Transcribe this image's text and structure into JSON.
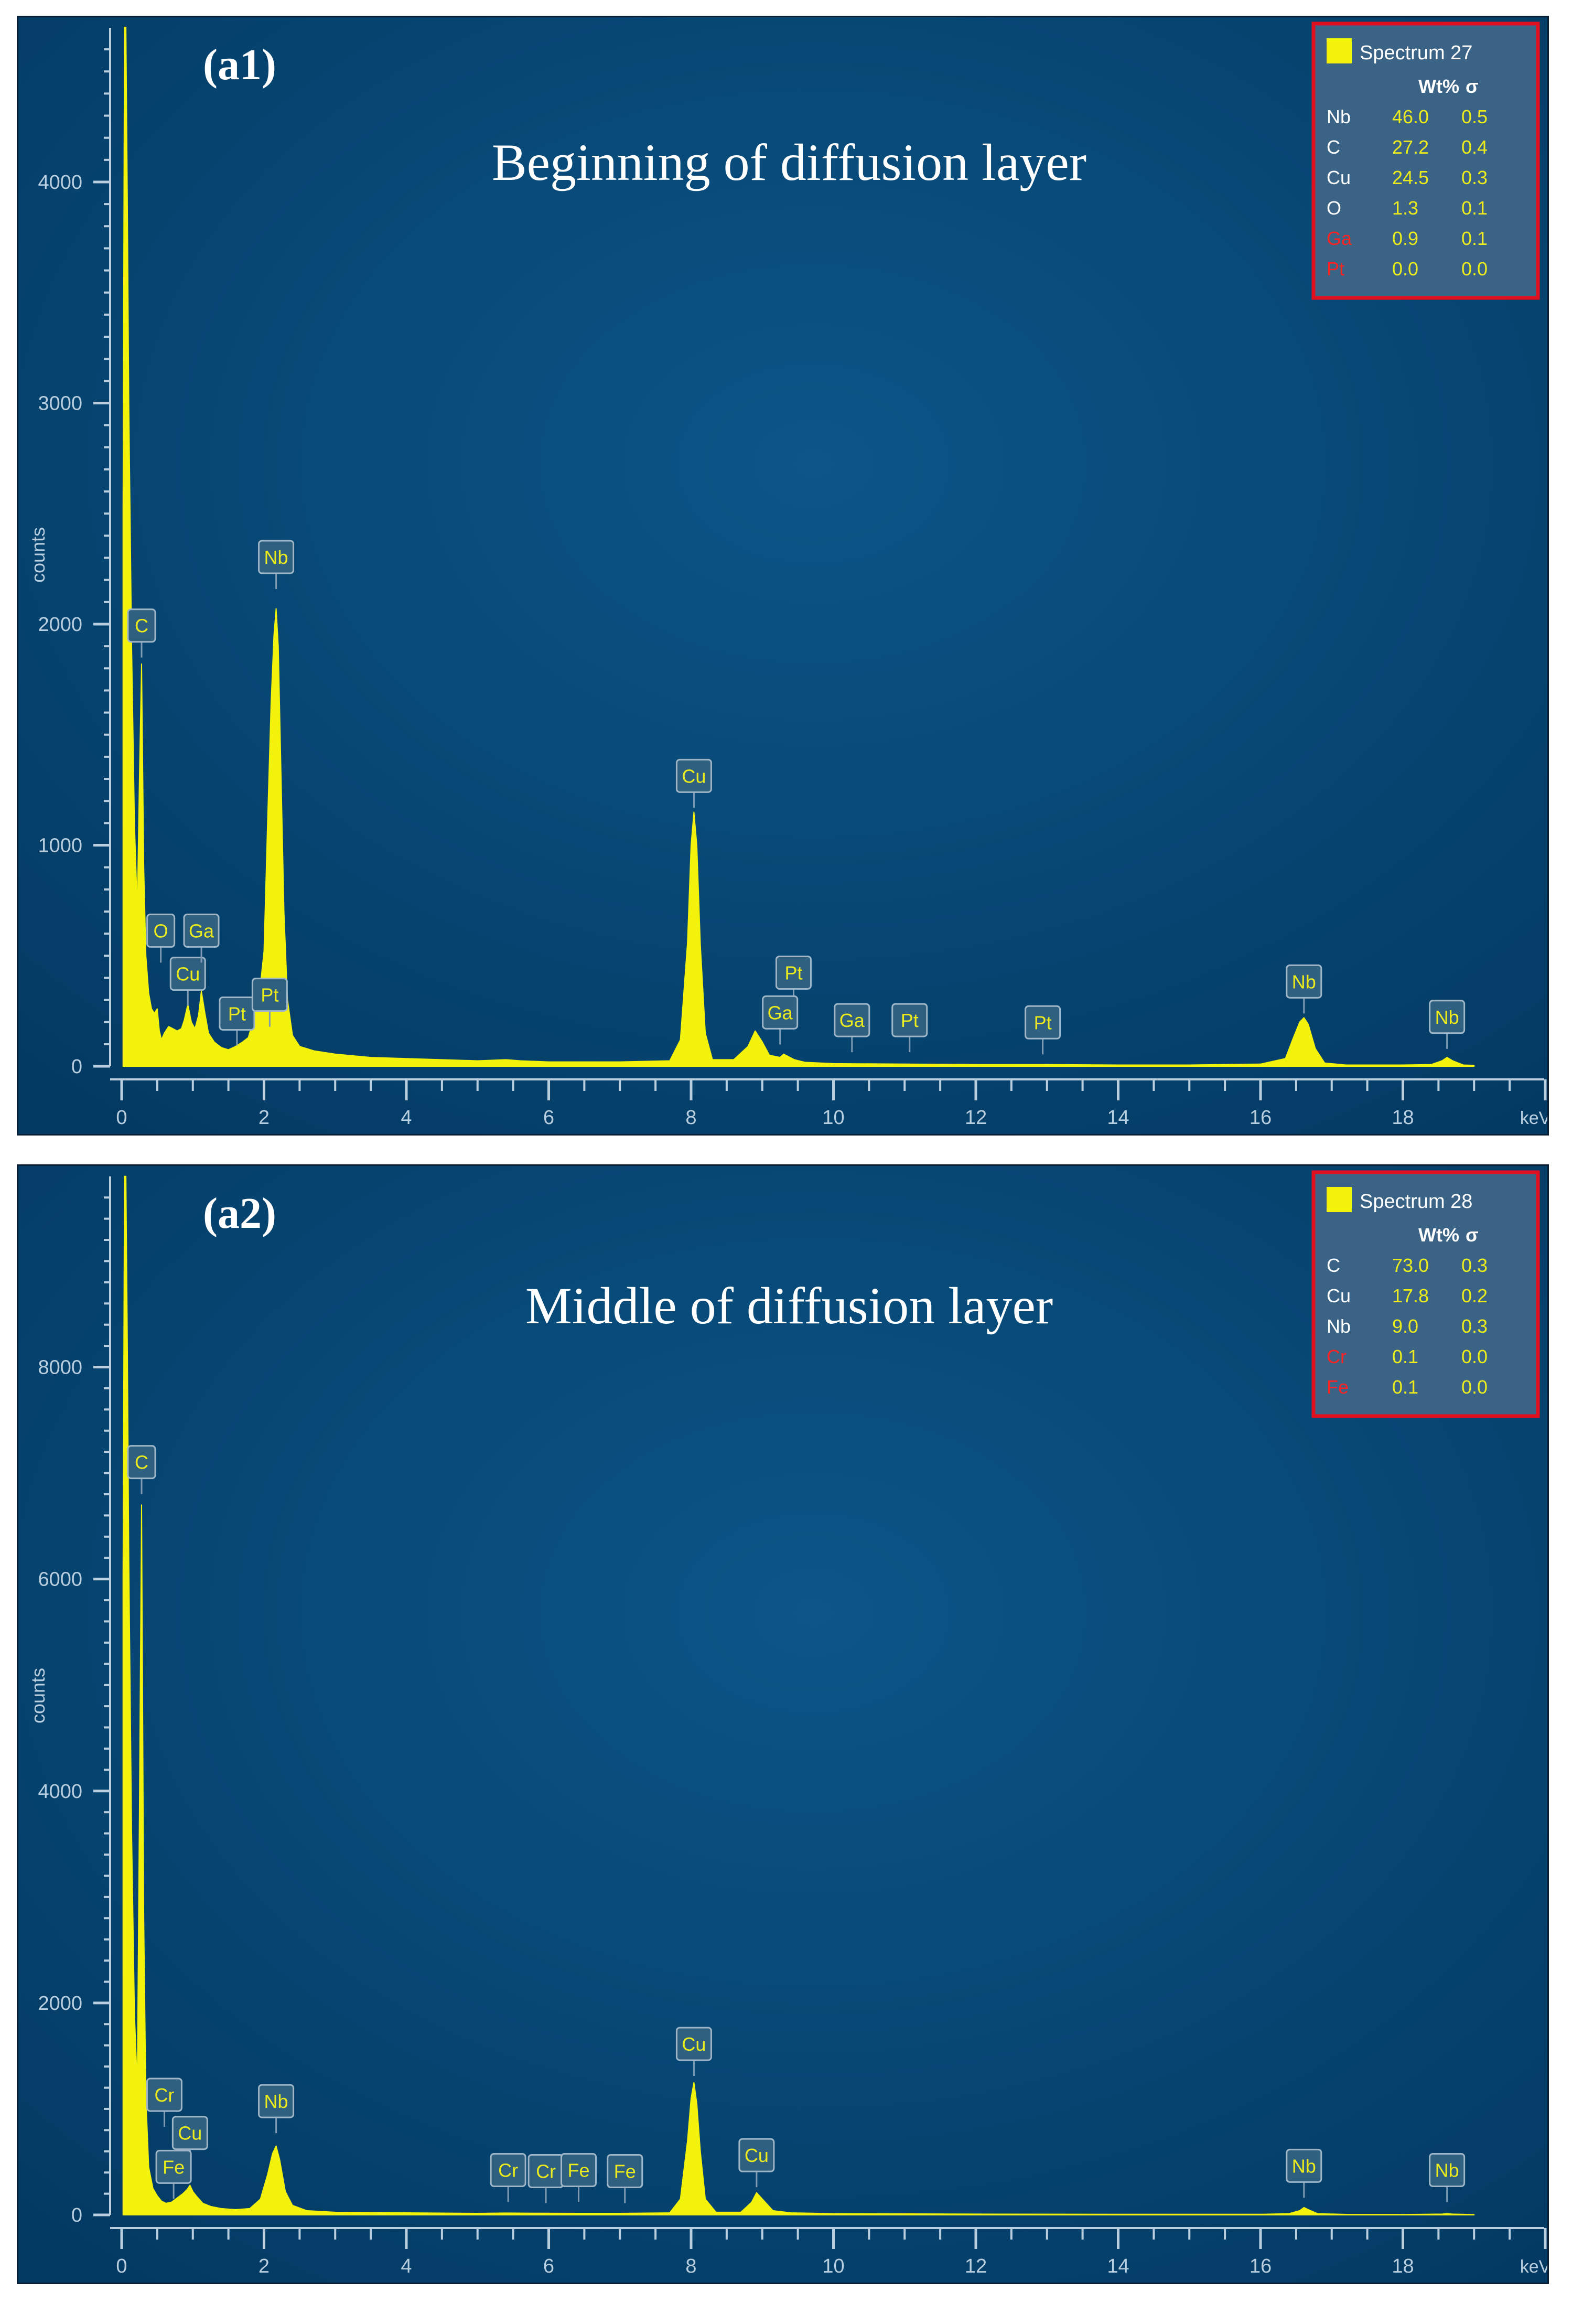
{
  "colors": {
    "background_center": "#0c5688",
    "background_edge": "#033a63",
    "spectrum": "#f2f20a",
    "axis": "#b9cfe0",
    "label_box": "#2f607f",
    "legend_border": "#e0101e",
    "legend_bg": "#3a6386",
    "wt_value": "#ecec1c",
    "flag_red": "#ff2222"
  },
  "charts": [
    {
      "panel_label": "(a1)",
      "title": "Beginning  of diffusion  layer",
      "ylabel": "counts",
      "xlabel_unit": "keV",
      "x_ticks": [
        "0",
        "2",
        "4",
        "6",
        "8",
        "10",
        "12",
        "14",
        "16",
        "18"
      ],
      "y_ticks": [
        "0",
        "1000",
        "2000",
        "3000",
        "4000"
      ],
      "legend": {
        "name": "Spectrum 27",
        "col_wt": "Wt%",
        "col_sigma": "σ",
        "rows": [
          {
            "el": "Nb",
            "wt": "46.0",
            "sigma": "0.5",
            "flag": false
          },
          {
            "el": "C",
            "wt": "27.2",
            "sigma": "0.4",
            "flag": false
          },
          {
            "el": "Cu",
            "wt": "24.5",
            "sigma": "0.3",
            "flag": false
          },
          {
            "el": "O",
            "wt": "1.3",
            "sigma": "0.1",
            "flag": false
          },
          {
            "el": "Ga",
            "wt": "0.9",
            "sigma": "0.1",
            "flag": true
          },
          {
            "el": "Pt",
            "wt": "0.0",
            "sigma": "0.0",
            "flag": true
          }
        ]
      },
      "peak_labels": [
        {
          "text": "C",
          "x": 0.28,
          "y": 1920
        },
        {
          "text": "O",
          "x": 0.55,
          "y": 540
        },
        {
          "text": "Cu",
          "x": 0.93,
          "y": 345
        },
        {
          "text": "Ga",
          "x": 1.12,
          "y": 540
        },
        {
          "text": "Pt",
          "x": 1.62,
          "y": 165
        },
        {
          "text": "Pt",
          "x": 2.08,
          "y": 250
        },
        {
          "text": "Nb",
          "x": 2.17,
          "y": 2230
        },
        {
          "text": "Cu",
          "x": 8.04,
          "y": 1240
        },
        {
          "text": "Pt",
          "x": 9.44,
          "y": 350
        },
        {
          "text": "Ga",
          "x": 9.25,
          "y": 170
        },
        {
          "text": "Ga",
          "x": 10.26,
          "y": 135
        },
        {
          "text": "Pt",
          "x": 11.07,
          "y": 135
        },
        {
          "text": "Pt",
          "x": 12.94,
          "y": 125
        },
        {
          "text": "Nb",
          "x": 16.61,
          "y": 310
        },
        {
          "text": "Nb",
          "x": 18.62,
          "y": 150
        }
      ]
    },
    {
      "panel_label": "(a2)",
      "title": "Middle  of diffusion  layer",
      "ylabel": "counts",
      "xlabel_unit": "keV",
      "x_ticks": [
        "0",
        "2",
        "4",
        "6",
        "8",
        "10",
        "12",
        "14",
        "16",
        "18"
      ],
      "y_ticks": [
        "0",
        "2000",
        "4000",
        "6000",
        "8000"
      ],
      "legend": {
        "name": "Spectrum 28",
        "col_wt": "Wt%",
        "col_sigma": "σ",
        "rows": [
          {
            "el": "C",
            "wt": "73.0",
            "sigma": "0.3",
            "flag": false
          },
          {
            "el": "Cu",
            "wt": "17.8",
            "sigma": "0.2",
            "flag": false
          },
          {
            "el": "Nb",
            "wt": "9.0",
            "sigma": "0.3",
            "flag": false
          },
          {
            "el": "Cr",
            "wt": "0.1",
            "sigma": "0.0",
            "flag": true
          },
          {
            "el": "Fe",
            "wt": "0.1",
            "sigma": "0.0",
            "flag": true
          }
        ]
      },
      "peak_labels": [
        {
          "text": "C",
          "x": 0.28,
          "y": 6950
        },
        {
          "text": "Cr",
          "x": 0.6,
          "y": 980
        },
        {
          "text": "Cu",
          "x": 0.96,
          "y": 620
        },
        {
          "text": "Fe",
          "x": 0.73,
          "y": 300
        },
        {
          "text": "Nb",
          "x": 2.17,
          "y": 920
        },
        {
          "text": "Cr",
          "x": 5.43,
          "y": 270
        },
        {
          "text": "Cr",
          "x": 5.96,
          "y": 260
        },
        {
          "text": "Fe",
          "x": 6.42,
          "y": 270
        },
        {
          "text": "Fe",
          "x": 7.07,
          "y": 260
        },
        {
          "text": "Cu",
          "x": 8.04,
          "y": 1460
        },
        {
          "text": "Cu",
          "x": 8.92,
          "y": 410
        },
        {
          "text": "Nb",
          "x": 16.61,
          "y": 310
        },
        {
          "text": "Nb",
          "x": 18.62,
          "y": 270
        }
      ]
    }
  ],
  "chart_data": [
    {
      "type": "area",
      "title": "Beginning  of diffusion  layer",
      "ylabel": "counts",
      "xlabel": "keV",
      "xlim": [
        0,
        20
      ],
      "ylim": [
        0,
        4650
      ],
      "grid": false,
      "legend": "top-right",
      "series": [
        {
          "name": "Spectrum 27",
          "x": [
            0.02,
            0.04,
            0.06,
            0.08,
            0.1,
            0.14,
            0.18,
            0.22,
            0.25,
            0.28,
            0.31,
            0.34,
            0.38,
            0.42,
            0.46,
            0.5,
            0.53,
            0.56,
            0.6,
            0.66,
            0.72,
            0.78,
            0.84,
            0.88,
            0.93,
            0.98,
            1.03,
            1.08,
            1.12,
            1.17,
            1.22,
            1.3,
            1.4,
            1.5,
            1.6,
            1.7,
            1.78,
            1.86,
            1.94,
            2.0,
            2.05,
            2.1,
            2.14,
            2.17,
            2.2,
            2.24,
            2.28,
            2.33,
            2.4,
            2.5,
            2.7,
            3.0,
            3.5,
            4.0,
            5.0,
            5.4,
            5.6,
            6.0,
            7.0,
            7.7,
            7.85,
            7.95,
            8.0,
            8.04,
            8.08,
            8.13,
            8.2,
            8.3,
            8.6,
            8.8,
            8.9,
            9.0,
            9.1,
            9.25,
            9.3,
            9.45,
            9.6,
            10.0,
            11.0,
            12.0,
            13.0,
            14.0,
            15.0,
            16.0,
            16.35,
            16.45,
            16.55,
            16.61,
            16.67,
            16.77,
            16.9,
            17.2,
            18.0,
            18.4,
            18.55,
            18.62,
            18.7,
            18.85,
            19.0
          ],
          "y": [
            2500,
            4700,
            4700,
            3900,
            3000,
            1900,
            1100,
            700,
            1300,
            1820,
            900,
            500,
            330,
            260,
            240,
            260,
            160,
            120,
            150,
            180,
            170,
            160,
            170,
            210,
            280,
            200,
            170,
            230,
            340,
            240,
            150,
            110,
            85,
            75,
            90,
            110,
            130,
            220,
            340,
            520,
            1100,
            1650,
            1950,
            2070,
            1900,
            1300,
            700,
            300,
            140,
            90,
            70,
            55,
            40,
            35,
            25,
            30,
            25,
            20,
            20,
            25,
            120,
            560,
            1000,
            1150,
            1000,
            550,
            150,
            30,
            30,
            90,
            160,
            110,
            50,
            40,
            55,
            30,
            18,
            12,
            10,
            8,
            8,
            6,
            6,
            10,
            35,
            120,
            200,
            220,
            190,
            80,
            15,
            6,
            6,
            8,
            25,
            40,
            25,
            6,
            4
          ]
        }
      ]
    },
    {
      "type": "area",
      "title": "Middle  of diffusion  layer",
      "ylabel": "counts",
      "xlabel": "keV",
      "xlim": [
        0,
        20
      ],
      "ylim": [
        0,
        9700
      ],
      "grid": false,
      "legend": "top-right",
      "series": [
        {
          "name": "Spectrum 28",
          "x": [
            0.02,
            0.04,
            0.06,
            0.08,
            0.1,
            0.14,
            0.18,
            0.22,
            0.25,
            0.28,
            0.31,
            0.34,
            0.38,
            0.44,
            0.5,
            0.56,
            0.62,
            0.7,
            0.78,
            0.86,
            0.92,
            0.96,
            1.0,
            1.06,
            1.14,
            1.25,
            1.4,
            1.6,
            1.8,
            1.95,
            2.05,
            2.12,
            2.17,
            2.22,
            2.3,
            2.4,
            2.6,
            3.0,
            4.0,
            5.0,
            5.4,
            5.9,
            6.4,
            7.0,
            7.7,
            7.85,
            7.95,
            8.0,
            8.04,
            8.08,
            8.13,
            8.2,
            8.35,
            8.7,
            8.85,
            8.92,
            9.0,
            9.15,
            9.4,
            10.0,
            12.0,
            14.0,
            16.0,
            16.4,
            16.55,
            16.61,
            16.67,
            16.8,
            17.2,
            18.0,
            18.55,
            18.62,
            18.7,
            19.0
          ],
          "y": [
            6000,
            9800,
            9800,
            8200,
            6200,
            3600,
            1900,
            1200,
            3800,
            6700,
            2800,
            1100,
            450,
            250,
            180,
            130,
            110,
            120,
            160,
            200,
            240,
            280,
            220,
            170,
            110,
            80,
            60,
            50,
            60,
            150,
            380,
            580,
            650,
            520,
            220,
            90,
            40,
            25,
            20,
            15,
            18,
            16,
            15,
            15,
            20,
            150,
            700,
            1100,
            1250,
            1050,
            600,
            150,
            25,
            25,
            120,
            210,
            150,
            40,
            20,
            12,
            8,
            6,
            6,
            12,
            40,
            70,
            50,
            12,
            5,
            4,
            8,
            12,
            8,
            3
          ]
        }
      ]
    }
  ]
}
